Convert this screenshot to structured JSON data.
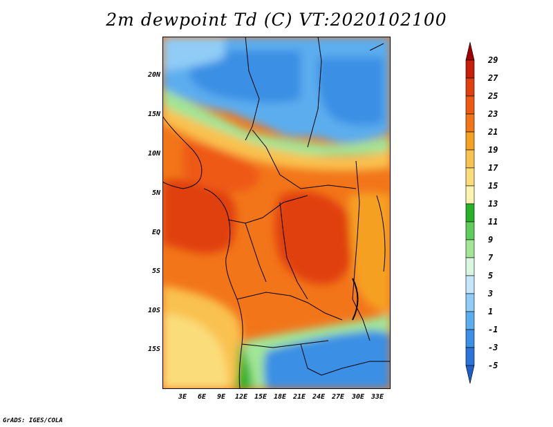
{
  "title": "2m dewpoint Td (C) VT:2020102100",
  "footer": "GrADS: IGES/COLA",
  "y_axis_labels": [
    "20N",
    "15N",
    "10N",
    "5N",
    "EQ",
    "5S",
    "10S",
    "15S"
  ],
  "x_axis_labels": [
    "3E",
    "6E",
    "9E",
    "12E",
    "15E",
    "18E",
    "21E",
    "24E",
    "27E",
    "30E",
    "33E"
  ],
  "colorbar": {
    "labels": [
      "29",
      "27",
      "25",
      "23",
      "21",
      "19",
      "17",
      "15",
      "13",
      "11",
      "9",
      "7",
      "5",
      "3",
      "1",
      "-1",
      "-3",
      "-5"
    ],
    "colors": [
      "#a00000",
      "#c81e0a",
      "#e04010",
      "#ee5a14",
      "#f2751a",
      "#f6a023",
      "#f9c14f",
      "#fadd7a",
      "#fdf3b0",
      "#29b12a",
      "#5ecd5a",
      "#a2e596",
      "#d9f6e0",
      "#c6e6fb",
      "#90ccf6",
      "#5cadee",
      "#3b8fe4",
      "#2b72d9",
      "#1f5ec8"
    ]
  }
}
